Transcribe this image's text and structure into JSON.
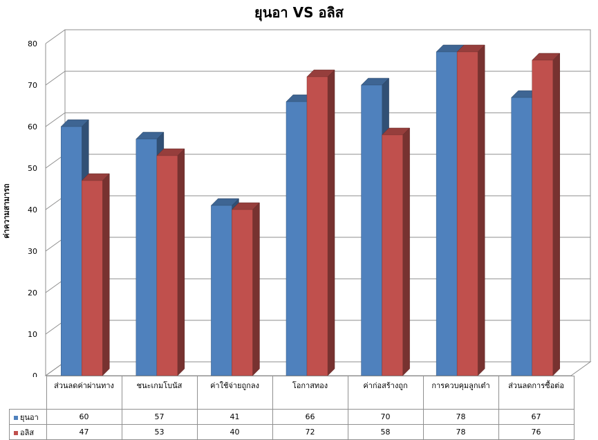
{
  "chart_data": {
    "type": "bar",
    "title": "ยุนอา VS อลิส",
    "xlabel": "",
    "ylabel": "ค่าความสามารถ",
    "ylim": [
      0,
      80
    ],
    "yticks": [
      0,
      10,
      20,
      30,
      40,
      50,
      60,
      70,
      80
    ],
    "grid": true,
    "legend": "data-table",
    "categories": [
      "ส่วนลดค่าผ่านทาง",
      "ชนะเกมโบนัส",
      "ค่าใช้จ่ายถูกลง",
      "โอกาสทอง",
      "ค่าก่อสร้างถูก",
      "การควบคุมลูกเต๋า",
      "ส่วนลดการซื้อต่อ"
    ],
    "series": [
      {
        "name": "ยุนอา",
        "color": "#4f81bd",
        "values": [
          60,
          57,
          41,
          66,
          70,
          78,
          67
        ]
      },
      {
        "name": "อลิส",
        "color": "#c0504d",
        "values": [
          47,
          53,
          40,
          72,
          58,
          78,
          76
        ]
      }
    ]
  }
}
